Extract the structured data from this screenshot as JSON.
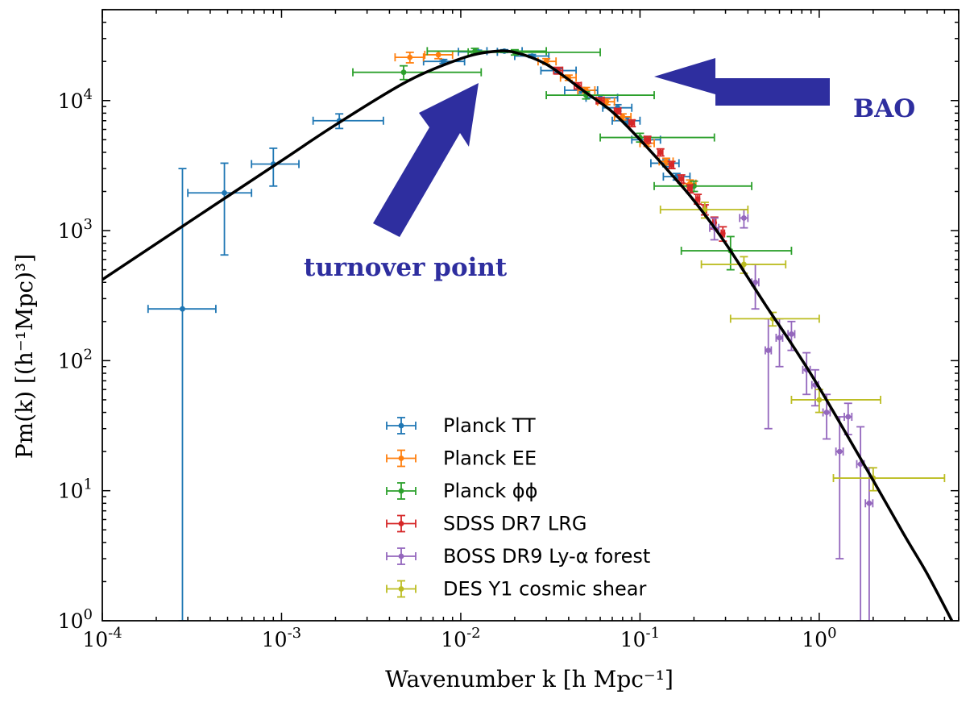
{
  "chart_data": {
    "type": "scatter",
    "title": "",
    "xlabel": "Wavenumber k [h Mpc⁻¹]",
    "ylabel": "Pm(k) [(h⁻¹Mpc)³]",
    "x_scale": "log",
    "y_scale": "log",
    "xlim": [
      0.0001,
      6
    ],
    "ylim": [
      1,
      50000
    ],
    "grid": false,
    "legend_position": "lower-center",
    "x_ticks": [
      {
        "value": 0.0001,
        "base": "10",
        "exp": "-4"
      },
      {
        "value": 0.001,
        "base": "10",
        "exp": "-3"
      },
      {
        "value": 0.01,
        "base": "10",
        "exp": "-2"
      },
      {
        "value": 0.1,
        "base": "10",
        "exp": "-1"
      },
      {
        "value": 1,
        "base": "10",
        "exp": "0"
      }
    ],
    "y_ticks": [
      {
        "value": 1,
        "base": "10",
        "exp": "0"
      },
      {
        "value": 10,
        "base": "10",
        "exp": "1"
      },
      {
        "value": 100,
        "base": "10",
        "exp": "2"
      },
      {
        "value": 1000,
        "base": "10",
        "exp": "3"
      },
      {
        "value": 10000,
        "base": "10",
        "exp": "4"
      }
    ],
    "model_curve": {
      "color": "#000000",
      "points": [
        [
          0.0001,
          420
        ],
        [
          0.0003,
          1150
        ],
        [
          0.001,
          3450
        ],
        [
          0.002,
          6500
        ],
        [
          0.005,
          14000
        ],
        [
          0.01,
          21000
        ],
        [
          0.015,
          23800
        ],
        [
          0.02,
          23500
        ],
        [
          0.03,
          19000
        ],
        [
          0.05,
          11500
        ],
        [
          0.07,
          8200
        ],
        [
          0.1,
          5000
        ],
        [
          0.15,
          2700
        ],
        [
          0.2,
          1700
        ],
        [
          0.3,
          800
        ],
        [
          0.5,
          270
        ],
        [
          0.7,
          135
        ],
        [
          1.0,
          62
        ],
        [
          2.0,
          12
        ],
        [
          3.0,
          4.5
        ],
        [
          4.0,
          2.3
        ],
        [
          5.5,
          1.0
        ]
      ]
    },
    "series": [
      {
        "name": "Planck TT",
        "color": "#1f77b4",
        "points": [
          {
            "x": 0.00028,
            "y": 250,
            "xlo": 0.00018,
            "xhi": 0.00043,
            "ylo": 1.0,
            "yhi": 3000
          },
          {
            "x": 0.00048,
            "y": 1950,
            "xlo": 0.0003,
            "xhi": 0.00068,
            "ylo": 650,
            "yhi": 3300
          },
          {
            "x": 0.0009,
            "y": 3250,
            "xlo": 0.00068,
            "xhi": 0.00125,
            "ylo": 2200,
            "yhi": 4300
          },
          {
            "x": 0.0021,
            "y": 7000,
            "xlo": 0.0015,
            "xhi": 0.0037,
            "ylo": 6100,
            "yhi": 7900
          },
          {
            "x": 0.008,
            "y": 20000,
            "xlo": 0.0062,
            "xhi": 0.0105,
            "ylo": 19300,
            "yhi": 20700
          },
          {
            "x": 0.0125,
            "y": 23700,
            "xlo": 0.0097,
            "xhi": 0.016,
            "ylo": 23000,
            "yhi": 24400
          },
          {
            "x": 0.0175,
            "y": 24000,
            "xlo": 0.014,
            "xhi": 0.022,
            "ylo": 23400,
            "yhi": 24600
          },
          {
            "x": 0.025,
            "y": 22000,
            "xlo": 0.02,
            "xhi": 0.031,
            "ylo": 21400,
            "yhi": 22600
          },
          {
            "x": 0.035,
            "y": 17000,
            "xlo": 0.028,
            "xhi": 0.044,
            "ylo": 16400,
            "yhi": 17600
          },
          {
            "x": 0.047,
            "y": 12000,
            "xlo": 0.038,
            "xhi": 0.058,
            "ylo": 11400,
            "yhi": 12600
          },
          {
            "x": 0.06,
            "y": 10500,
            "xlo": 0.05,
            "xhi": 0.075,
            "ylo": 10000,
            "yhi": 11000
          },
          {
            "x": 0.075,
            "y": 8800,
            "xlo": 0.062,
            "xhi": 0.09,
            "ylo": 8300,
            "yhi": 9300
          },
          {
            "x": 0.085,
            "y": 7000,
            "xlo": 0.07,
            "xhi": 0.1,
            "ylo": 6600,
            "yhi": 7400
          },
          {
            "x": 0.11,
            "y": 5000,
            "xlo": 0.09,
            "xhi": 0.13,
            "ylo": 4700,
            "yhi": 5300
          },
          {
            "x": 0.14,
            "y": 3300,
            "xlo": 0.115,
            "xhi": 0.165,
            "ylo": 3100,
            "yhi": 3500
          },
          {
            "x": 0.16,
            "y": 2600,
            "xlo": 0.135,
            "xhi": 0.19,
            "ylo": 2450,
            "yhi": 2750
          }
        ]
      },
      {
        "name": "Planck EE",
        "color": "#ff7f0e",
        "points": [
          {
            "x": 0.0052,
            "y": 21500,
            "xlo": 0.0043,
            "xhi": 0.0062,
            "ylo": 19500,
            "yhi": 23500
          },
          {
            "x": 0.0075,
            "y": 22500,
            "xlo": 0.0063,
            "xhi": 0.009,
            "ylo": 21000,
            "yhi": 24000
          },
          {
            "x": 0.03,
            "y": 20000,
            "xlo": 0.027,
            "xhi": 0.034,
            "ylo": 19000,
            "yhi": 21000
          },
          {
            "x": 0.04,
            "y": 15000,
            "xlo": 0.036,
            "xhi": 0.044,
            "ylo": 14300,
            "yhi": 15700
          },
          {
            "x": 0.05,
            "y": 12000,
            "xlo": 0.045,
            "xhi": 0.056,
            "ylo": 11400,
            "yhi": 12600
          },
          {
            "x": 0.065,
            "y": 9800,
            "xlo": 0.058,
            "xhi": 0.072,
            "ylo": 9300,
            "yhi": 10300
          },
          {
            "x": 0.08,
            "y": 7500,
            "xlo": 0.072,
            "xhi": 0.089,
            "ylo": 7100,
            "yhi": 7900
          },
          {
            "x": 0.11,
            "y": 4700,
            "xlo": 0.1,
            "xhi": 0.12,
            "ylo": 4450,
            "yhi": 4950
          },
          {
            "x": 0.14,
            "y": 3400,
            "xlo": 0.128,
            "xhi": 0.153,
            "ylo": 3200,
            "yhi": 3600
          },
          {
            "x": 0.19,
            "y": 2300,
            "xlo": 0.175,
            "xhi": 0.205,
            "ylo": 2150,
            "yhi": 2450
          }
        ]
      },
      {
        "name": "Planck ϕϕ",
        "color": "#2ca02c",
        "points": [
          {
            "x": 0.0048,
            "y": 16500,
            "xlo": 0.0025,
            "xhi": 0.013,
            "ylo": 14500,
            "yhi": 18500
          },
          {
            "x": 0.012,
            "y": 24000,
            "xlo": 0.0065,
            "xhi": 0.03,
            "ylo": 22800,
            "yhi": 25200
          },
          {
            "x": 0.02,
            "y": 23500,
            "xlo": 0.011,
            "xhi": 0.06,
            "ylo": 22400,
            "yhi": 24600
          },
          {
            "x": 0.05,
            "y": 11000,
            "xlo": 0.03,
            "xhi": 0.12,
            "ylo": 10300,
            "yhi": 11700
          },
          {
            "x": 0.1,
            "y": 5200,
            "xlo": 0.06,
            "xhi": 0.26,
            "ylo": 4800,
            "yhi": 5600
          },
          {
            "x": 0.2,
            "y": 2200,
            "xlo": 0.12,
            "xhi": 0.42,
            "ylo": 2000,
            "yhi": 2400
          },
          {
            "x": 0.32,
            "y": 700,
            "xlo": 0.17,
            "xhi": 0.7,
            "ylo": 500,
            "yhi": 900
          }
        ]
      },
      {
        "name": "SDSS DR7 LRG",
        "color": "#d62728",
        "points": [
          {
            "x": 0.035,
            "y": 17000,
            "xlo": 0.033,
            "xhi": 0.037,
            "ylo": 16000,
            "yhi": 18000
          },
          {
            "x": 0.045,
            "y": 13000,
            "xlo": 0.043,
            "xhi": 0.047,
            "ylo": 12300,
            "yhi": 13700
          },
          {
            "x": 0.06,
            "y": 10000,
            "xlo": 0.057,
            "xhi": 0.063,
            "ylo": 9500,
            "yhi": 10500
          },
          {
            "x": 0.075,
            "y": 8300,
            "xlo": 0.072,
            "xhi": 0.078,
            "ylo": 7900,
            "yhi": 8700
          },
          {
            "x": 0.09,
            "y": 6700,
            "xlo": 0.087,
            "xhi": 0.093,
            "ylo": 6300,
            "yhi": 7100
          },
          {
            "x": 0.11,
            "y": 5000,
            "xlo": 0.106,
            "xhi": 0.114,
            "ylo": 4700,
            "yhi": 5300
          },
          {
            "x": 0.13,
            "y": 4000,
            "xlo": 0.126,
            "xhi": 0.134,
            "ylo": 3750,
            "yhi": 4250
          },
          {
            "x": 0.15,
            "y": 3200,
            "xlo": 0.146,
            "xhi": 0.154,
            "ylo": 3000,
            "yhi": 3400
          },
          {
            "x": 0.17,
            "y": 2500,
            "xlo": 0.165,
            "xhi": 0.175,
            "ylo": 2320,
            "yhi": 2680
          },
          {
            "x": 0.19,
            "y": 2100,
            "xlo": 0.185,
            "xhi": 0.195,
            "ylo": 1950,
            "yhi": 2250
          },
          {
            "x": 0.21,
            "y": 1750,
            "xlo": 0.205,
            "xhi": 0.215,
            "ylo": 1600,
            "yhi": 1900
          },
          {
            "x": 0.23,
            "y": 1450,
            "xlo": 0.225,
            "xhi": 0.235,
            "ylo": 1320,
            "yhi": 1580
          },
          {
            "x": 0.26,
            "y": 1150,
            "xlo": 0.255,
            "xhi": 0.265,
            "ylo": 1030,
            "yhi": 1270
          },
          {
            "x": 0.29,
            "y": 950,
            "xlo": 0.284,
            "xhi": 0.296,
            "ylo": 830,
            "yhi": 1070
          }
        ]
      },
      {
        "name": "BOSS DR9 Ly-α forest",
        "color": "#9467bd",
        "points": [
          {
            "x": 0.26,
            "y": 1050,
            "xlo": 0.245,
            "xhi": 0.275,
            "ylo": 850,
            "yhi": 1250
          },
          {
            "x": 0.38,
            "y": 1250,
            "xlo": 0.36,
            "xhi": 0.4,
            "ylo": 1050,
            "yhi": 1450
          },
          {
            "x": 0.44,
            "y": 400,
            "xlo": 0.42,
            "xhi": 0.46,
            "ylo": 250,
            "yhi": 550
          },
          {
            "x": 0.52,
            "y": 120,
            "xlo": 0.5,
            "xhi": 0.54,
            "ylo": 30,
            "yhi": 210
          },
          {
            "x": 0.6,
            "y": 150,
            "xlo": 0.575,
            "xhi": 0.625,
            "ylo": 90,
            "yhi": 210
          },
          {
            "x": 0.7,
            "y": 160,
            "xlo": 0.67,
            "xhi": 0.73,
            "ylo": 120,
            "yhi": 200
          },
          {
            "x": 0.85,
            "y": 85,
            "xlo": 0.81,
            "xhi": 0.89,
            "ylo": 55,
            "yhi": 115
          },
          {
            "x": 0.95,
            "y": 65,
            "xlo": 0.91,
            "xhi": 0.99,
            "ylo": 45,
            "yhi": 85
          },
          {
            "x": 1.1,
            "y": 40,
            "xlo": 1.05,
            "xhi": 1.15,
            "ylo": 25,
            "yhi": 55
          },
          {
            "x": 1.3,
            "y": 20,
            "xlo": 1.24,
            "xhi": 1.36,
            "ylo": 3,
            "yhi": 37
          },
          {
            "x": 1.45,
            "y": 37,
            "xlo": 1.38,
            "xhi": 1.52,
            "ylo": 27,
            "yhi": 47
          },
          {
            "x": 1.7,
            "y": 16,
            "xlo": 1.62,
            "xhi": 1.78,
            "ylo": 1.0,
            "yhi": 31
          },
          {
            "x": 1.9,
            "y": 8,
            "xlo": 1.81,
            "xhi": 1.99,
            "ylo": 1.0,
            "yhi": 15
          }
        ]
      },
      {
        "name": "DES Y1 cosmic shear",
        "color": "#bcbd22",
        "points": [
          {
            "x": 0.23,
            "y": 1450,
            "xlo": 0.13,
            "xhi": 0.4,
            "ylo": 1250,
            "yhi": 1650
          },
          {
            "x": 0.38,
            "y": 550,
            "xlo": 0.22,
            "xhi": 0.65,
            "ylo": 470,
            "yhi": 630
          },
          {
            "x": 0.55,
            "y": 210,
            "xlo": 0.32,
            "xhi": 1.0,
            "ylo": 185,
            "yhi": 235
          },
          {
            "x": 1.0,
            "y": 50,
            "xlo": 0.7,
            "xhi": 2.2,
            "ylo": 40,
            "yhi": 60
          },
          {
            "x": 2.0,
            "y": 12.5,
            "xlo": 1.2,
            "xhi": 5.0,
            "ylo": 10,
            "yhi": 15
          }
        ]
      }
    ],
    "annotations": [
      {
        "text": "turnover point",
        "color": "#2e2e9f"
      },
      {
        "text": "BAO",
        "color": "#2e2e9f"
      }
    ]
  }
}
